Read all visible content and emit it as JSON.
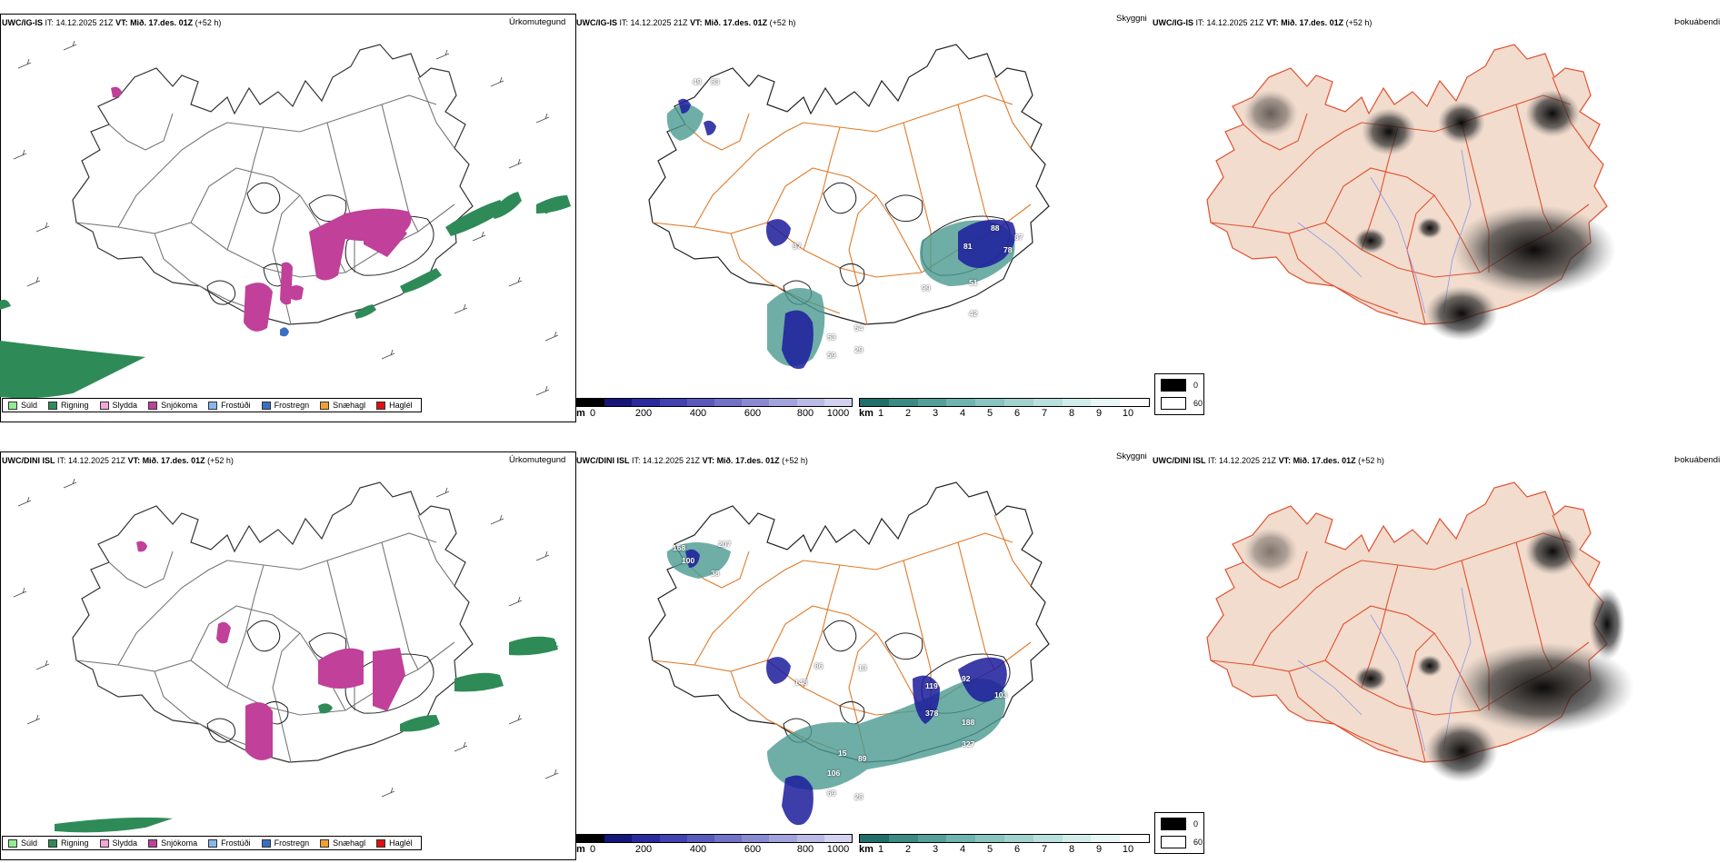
{
  "rows": [
    {
      "model": "UWC/IG-IS",
      "header_rest": " IT: 14.12.2025 21Z ",
      "vt_label": "VT: Mið. 17.des. 01Z",
      "lead": " (+52 h)",
      "precip_title": "Úrkomutegund",
      "vis_title": "Skyggni",
      "fog_title": "Þokuábendi",
      "vis_labels": [
        "49",
        "83",
        "97",
        "54",
        "29",
        "53",
        "59",
        "81",
        "88",
        "87",
        "78",
        "99",
        "51",
        "42"
      ]
    },
    {
      "model": "UWC/DINI ISL",
      "header_rest": " IT: 14.12.2025 21Z ",
      "vt_label": "VT: Mið. 17.des. 01Z",
      "lead": " (+52 h)",
      "precip_title": "Úrkomutegund",
      "vis_title": "Skyggni",
      "fog_title": "Þokuábendi",
      "vis_labels": [
        "168",
        "100",
        "207",
        "38",
        "148",
        "86",
        "13",
        "119",
        "92",
        "103",
        "378",
        "188",
        "327",
        "15",
        "89",
        "106",
        "69",
        "28"
      ]
    }
  ],
  "precip_legend": [
    {
      "label": "Súld",
      "color": "#90ee90"
    },
    {
      "label": "Rigning",
      "color": "#2e8b57"
    },
    {
      "label": "Slydda",
      "color": "#f4a6d7"
    },
    {
      "label": "Snjókoma",
      "color": "#c0409a"
    },
    {
      "label": "Frostúði",
      "color": "#87b6f0"
    },
    {
      "label": "Frostregn",
      "color": "#3a6fc4"
    },
    {
      "label": "Snæhagl",
      "color": "#f0a030"
    },
    {
      "label": "Haglél",
      "color": "#e01010"
    }
  ],
  "ceiling_bar": {
    "unit": "m",
    "ticks": [
      "0",
      "200",
      "400",
      "600",
      "800",
      "1000"
    ]
  },
  "visibility_bar": {
    "unit": "km",
    "ticks": [
      "1",
      "2",
      "3",
      "4",
      "5",
      "6",
      "7",
      "8",
      "9",
      "10"
    ]
  },
  "fog_legend": {
    "values": [
      "0",
      "60"
    ]
  },
  "colors": {
    "land_outline": "#333333",
    "roads": "#e07a2a",
    "fog_land": "#f2dccd",
    "fog_roads": "#e05030",
    "fog_rivers": "#8899ee",
    "rain": "#2e8b57",
    "snow": "#c0409a",
    "low_cloud": "#1c1c9c",
    "mist": "#4a9a90"
  }
}
